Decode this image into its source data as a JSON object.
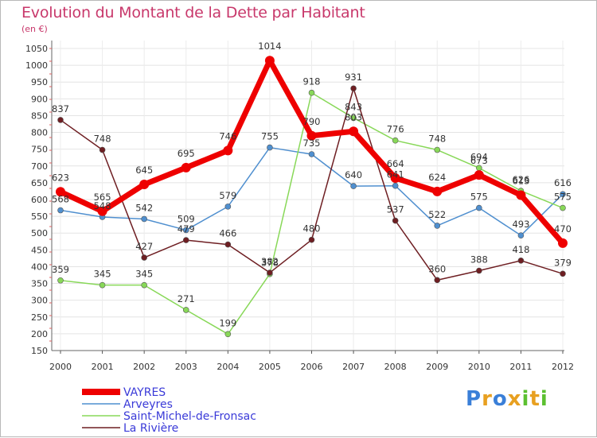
{
  "chart_data": {
    "type": "line",
    "title": "Evolution du Montant de la Dette par Habitant",
    "subtitle": "(en €)",
    "x": [
      "2000",
      "2001",
      "2002",
      "2003",
      "2004",
      "2005",
      "2006",
      "2007",
      "2008",
      "2009",
      "2010",
      "2011",
      "2012"
    ],
    "ylim": [
      150,
      1050
    ],
    "yticks": [
      150,
      200,
      250,
      300,
      350,
      400,
      450,
      500,
      550,
      600,
      650,
      700,
      750,
      800,
      850,
      900,
      950,
      1000,
      1050
    ],
    "grid": true,
    "legend_position": "bottom-left",
    "series": [
      {
        "name": "VAYRES",
        "color": "#ee0000",
        "values": [
          623,
          565,
          645,
          695,
          746,
          1014,
          790,
          803,
          664,
          624,
          673,
          613,
          470
        ],
        "labels": [
          "623",
          "565",
          "645",
          "695",
          "746",
          "1014",
          "790",
          "803",
          "664",
          "624",
          "673",
          "613",
          "470"
        ]
      },
      {
        "name": "Arveyres",
        "color": "#4f8fcf",
        "values": [
          568,
          548,
          542,
          509,
          579,
          755,
          735,
          640,
          641,
          522,
          575,
          493,
          616
        ],
        "labels": [
          "568",
          "548",
          "542",
          "509",
          "579",
          "755",
          "735",
          "640",
          "641",
          "522",
          "575",
          "493",
          "616"
        ]
      },
      {
        "name": "Saint-Michel-de-Fronsac",
        "color": "#88d858",
        "values": [
          359,
          345,
          345,
          271,
          199,
          378,
          918,
          843,
          776,
          748,
          694,
          626,
          575
        ],
        "labels": [
          "359",
          "345",
          "345",
          "271",
          "199",
          "378",
          "918",
          "843",
          "776",
          "748",
          "694",
          "626",
          "575"
        ]
      },
      {
        "name": "La Rivière",
        "color": "#6e1e22",
        "values": [
          837,
          748,
          427,
          479,
          466,
          382,
          480,
          931,
          537,
          360,
          388,
          418,
          379
        ],
        "labels": [
          "837",
          "748",
          "427",
          "479",
          "466",
          "382",
          "480",
          "931",
          "537",
          "360",
          "388",
          "418",
          "379"
        ]
      }
    ]
  },
  "brand": {
    "letters": [
      "P",
      "r",
      "o",
      "x",
      "i",
      "t",
      "i"
    ],
    "colors": [
      "#3a7fd8",
      "#e8a020",
      "#3a7fd8",
      "#e8a020",
      "#5cc030",
      "#e8a020",
      "#5cc030"
    ]
  }
}
